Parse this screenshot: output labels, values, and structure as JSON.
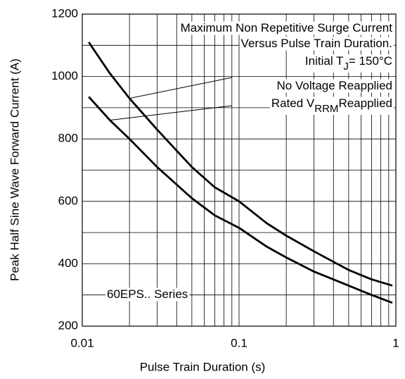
{
  "chart_data": {
    "type": "line",
    "xlabel": "Pulse Train Duration (s)",
    "ylabel": "Peak Half Sine Wave Forward Current (A)",
    "xscale": "log",
    "xlim": [
      0.01,
      1
    ],
    "xticks": [
      0.01,
      0.1,
      1
    ],
    "xgrid": [
      0.02,
      0.03,
      0.04,
      0.05,
      0.06,
      0.07,
      0.08,
      0.09,
      0.2,
      0.3,
      0.4,
      0.5,
      0.6,
      0.7,
      0.8,
      0.9
    ],
    "ylim": [
      200,
      1200
    ],
    "yticks": [
      200,
      400,
      600,
      800,
      1000,
      1200
    ],
    "ygrid": [
      300,
      500,
      700,
      900,
      1100
    ],
    "grid": true,
    "x": [
      0.011,
      0.015,
      0.02,
      0.03,
      0.05,
      0.07,
      0.1,
      0.15,
      0.2,
      0.3,
      0.5,
      0.7,
      0.95
    ],
    "series": [
      {
        "name": [
          "No Voltage Reapplied"
        ],
        "color": "#000",
        "values": [
          1110,
          1010,
          930,
          830,
          710,
          645,
          600,
          530,
          490,
          440,
          380,
          350,
          330
        ]
      },
      {
        "name": [
          "Rated V",
          "RRM",
          "Reapplied"
        ],
        "color": "#000",
        "values": [
          935,
          860,
          800,
          710,
          610,
          555,
          515,
          455,
          420,
          375,
          330,
          300,
          275
        ]
      }
    ],
    "annotations": [
      [
        "Maximum Non Repetitive Surge Current"
      ],
      [
        "Versus Pulse Train Duration."
      ],
      [
        "Initial T",
        "J",
        "= 150°C"
      ],
      [
        "60EPS.. Series"
      ]
    ]
  }
}
